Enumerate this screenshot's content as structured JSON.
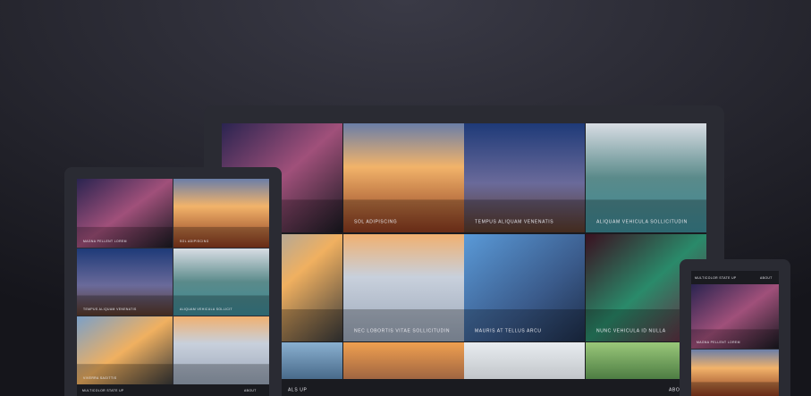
{
  "monitor": {
    "captions": [
      "SOL ADIPISCING",
      "TEMPUS ALIQUAM VENENATIS",
      "ALIQUAM VEHICULA SOLLICITUDIN",
      "NEC LOBORTIS VITAE SOLLICITUDIN",
      "MAURIS AT TELLUS ARCU",
      "NUNC VEHICULA ID NULLA"
    ],
    "footer": {
      "brand": "ALS UP",
      "nav": "ABO"
    }
  },
  "tablet": {
    "captions": [
      "MAGNA PELLENT LOREM",
      "SOL ADIPISCING",
      "TEMPUS ALIQUAM VENENATIS",
      "ALIQUAM VEHICULA SOLLICIT",
      "VIVERRA SAGITTIS"
    ],
    "footer": {
      "brand": "MULTICOLOR STATE UP",
      "nav": "ABOUT"
    }
  },
  "phone": {
    "header": {
      "brand": "MULTICOLOR STATE UP",
      "nav": "ABOUT"
    },
    "captions": [
      "MAGNA PELLENT LOREM"
    ]
  }
}
